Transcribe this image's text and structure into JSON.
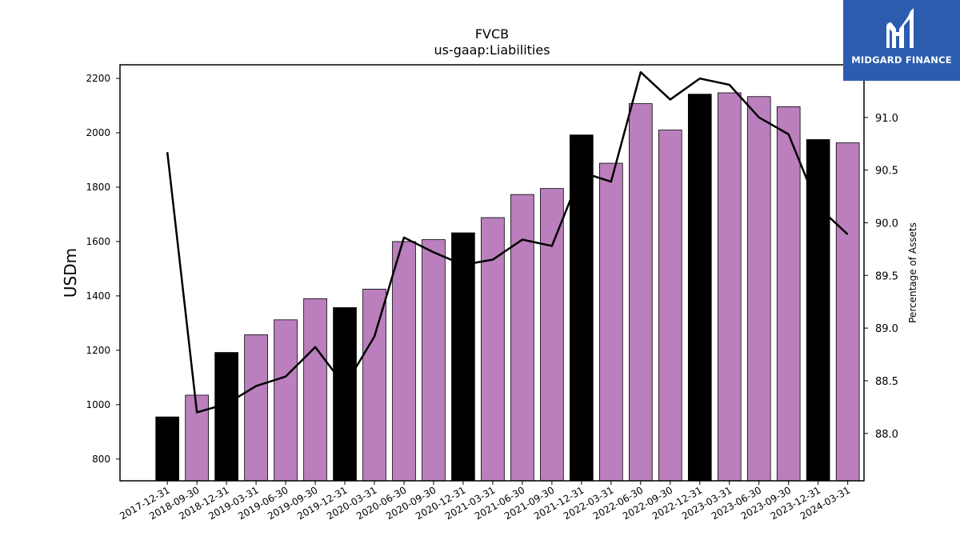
{
  "chart_data": {
    "type": "bar",
    "title": "FVCB",
    "subtitle": "us-gaap:Liabilities",
    "ylabel": "USDm",
    "y2label": "Percentage of Assets",
    "ylim": [
      720,
      2250
    ],
    "y2lim": [
      87.55,
      91.5
    ],
    "yticks": [
      800,
      1000,
      1200,
      1400,
      1600,
      1800,
      2000,
      2200
    ],
    "y2ticks": [
      88.0,
      88.5,
      89.0,
      89.5,
      90.0,
      90.5,
      91.0
    ],
    "categories": [
      "2017-12-31",
      "2018-09-30",
      "2018-12-31",
      "2019-03-31",
      "2019-06-30",
      "2019-09-30",
      "2019-12-31",
      "2020-03-31",
      "2020-06-30",
      "2020-09-30",
      "2020-12-31",
      "2021-03-31",
      "2021-06-30",
      "2021-09-30",
      "2021-12-31",
      "2022-03-31",
      "2022-06-30",
      "2022-09-30",
      "2022-12-31",
      "2023-03-31",
      "2023-06-30",
      "2023-09-30",
      "2023-12-31",
      "2024-03-31"
    ],
    "series": [
      {
        "type": "bar",
        "values": [
          955,
          1035,
          1192,
          1257,
          1312,
          1390,
          1357,
          1425,
          1600,
          1607,
          1632,
          1688,
          1773,
          1795,
          1992,
          1888,
          2107,
          2010,
          2142,
          2147,
          2133,
          2096,
          1975,
          1963
        ],
        "annual_flags": [
          true,
          false,
          true,
          false,
          false,
          false,
          true,
          false,
          false,
          false,
          true,
          false,
          false,
          false,
          true,
          false,
          false,
          false,
          true,
          false,
          false,
          false,
          true,
          false
        ]
      },
      {
        "type": "line",
        "axis": "right",
        "values": [
          90.67,
          88.2,
          88.28,
          88.45,
          88.54,
          88.82,
          88.45,
          88.92,
          89.86,
          89.72,
          89.6,
          89.65,
          89.84,
          89.78,
          90.48,
          90.39,
          91.43,
          91.17,
          91.37,
          91.31,
          91.0,
          90.84,
          90.15,
          89.89
        ]
      }
    ],
    "colors": {
      "annual_bar": "#000000",
      "quarter_bar": "#bb7fbd",
      "line": "#000000"
    }
  },
  "logo": {
    "text": "MIDGARD FINANCE",
    "background": "#2b5cad"
  }
}
